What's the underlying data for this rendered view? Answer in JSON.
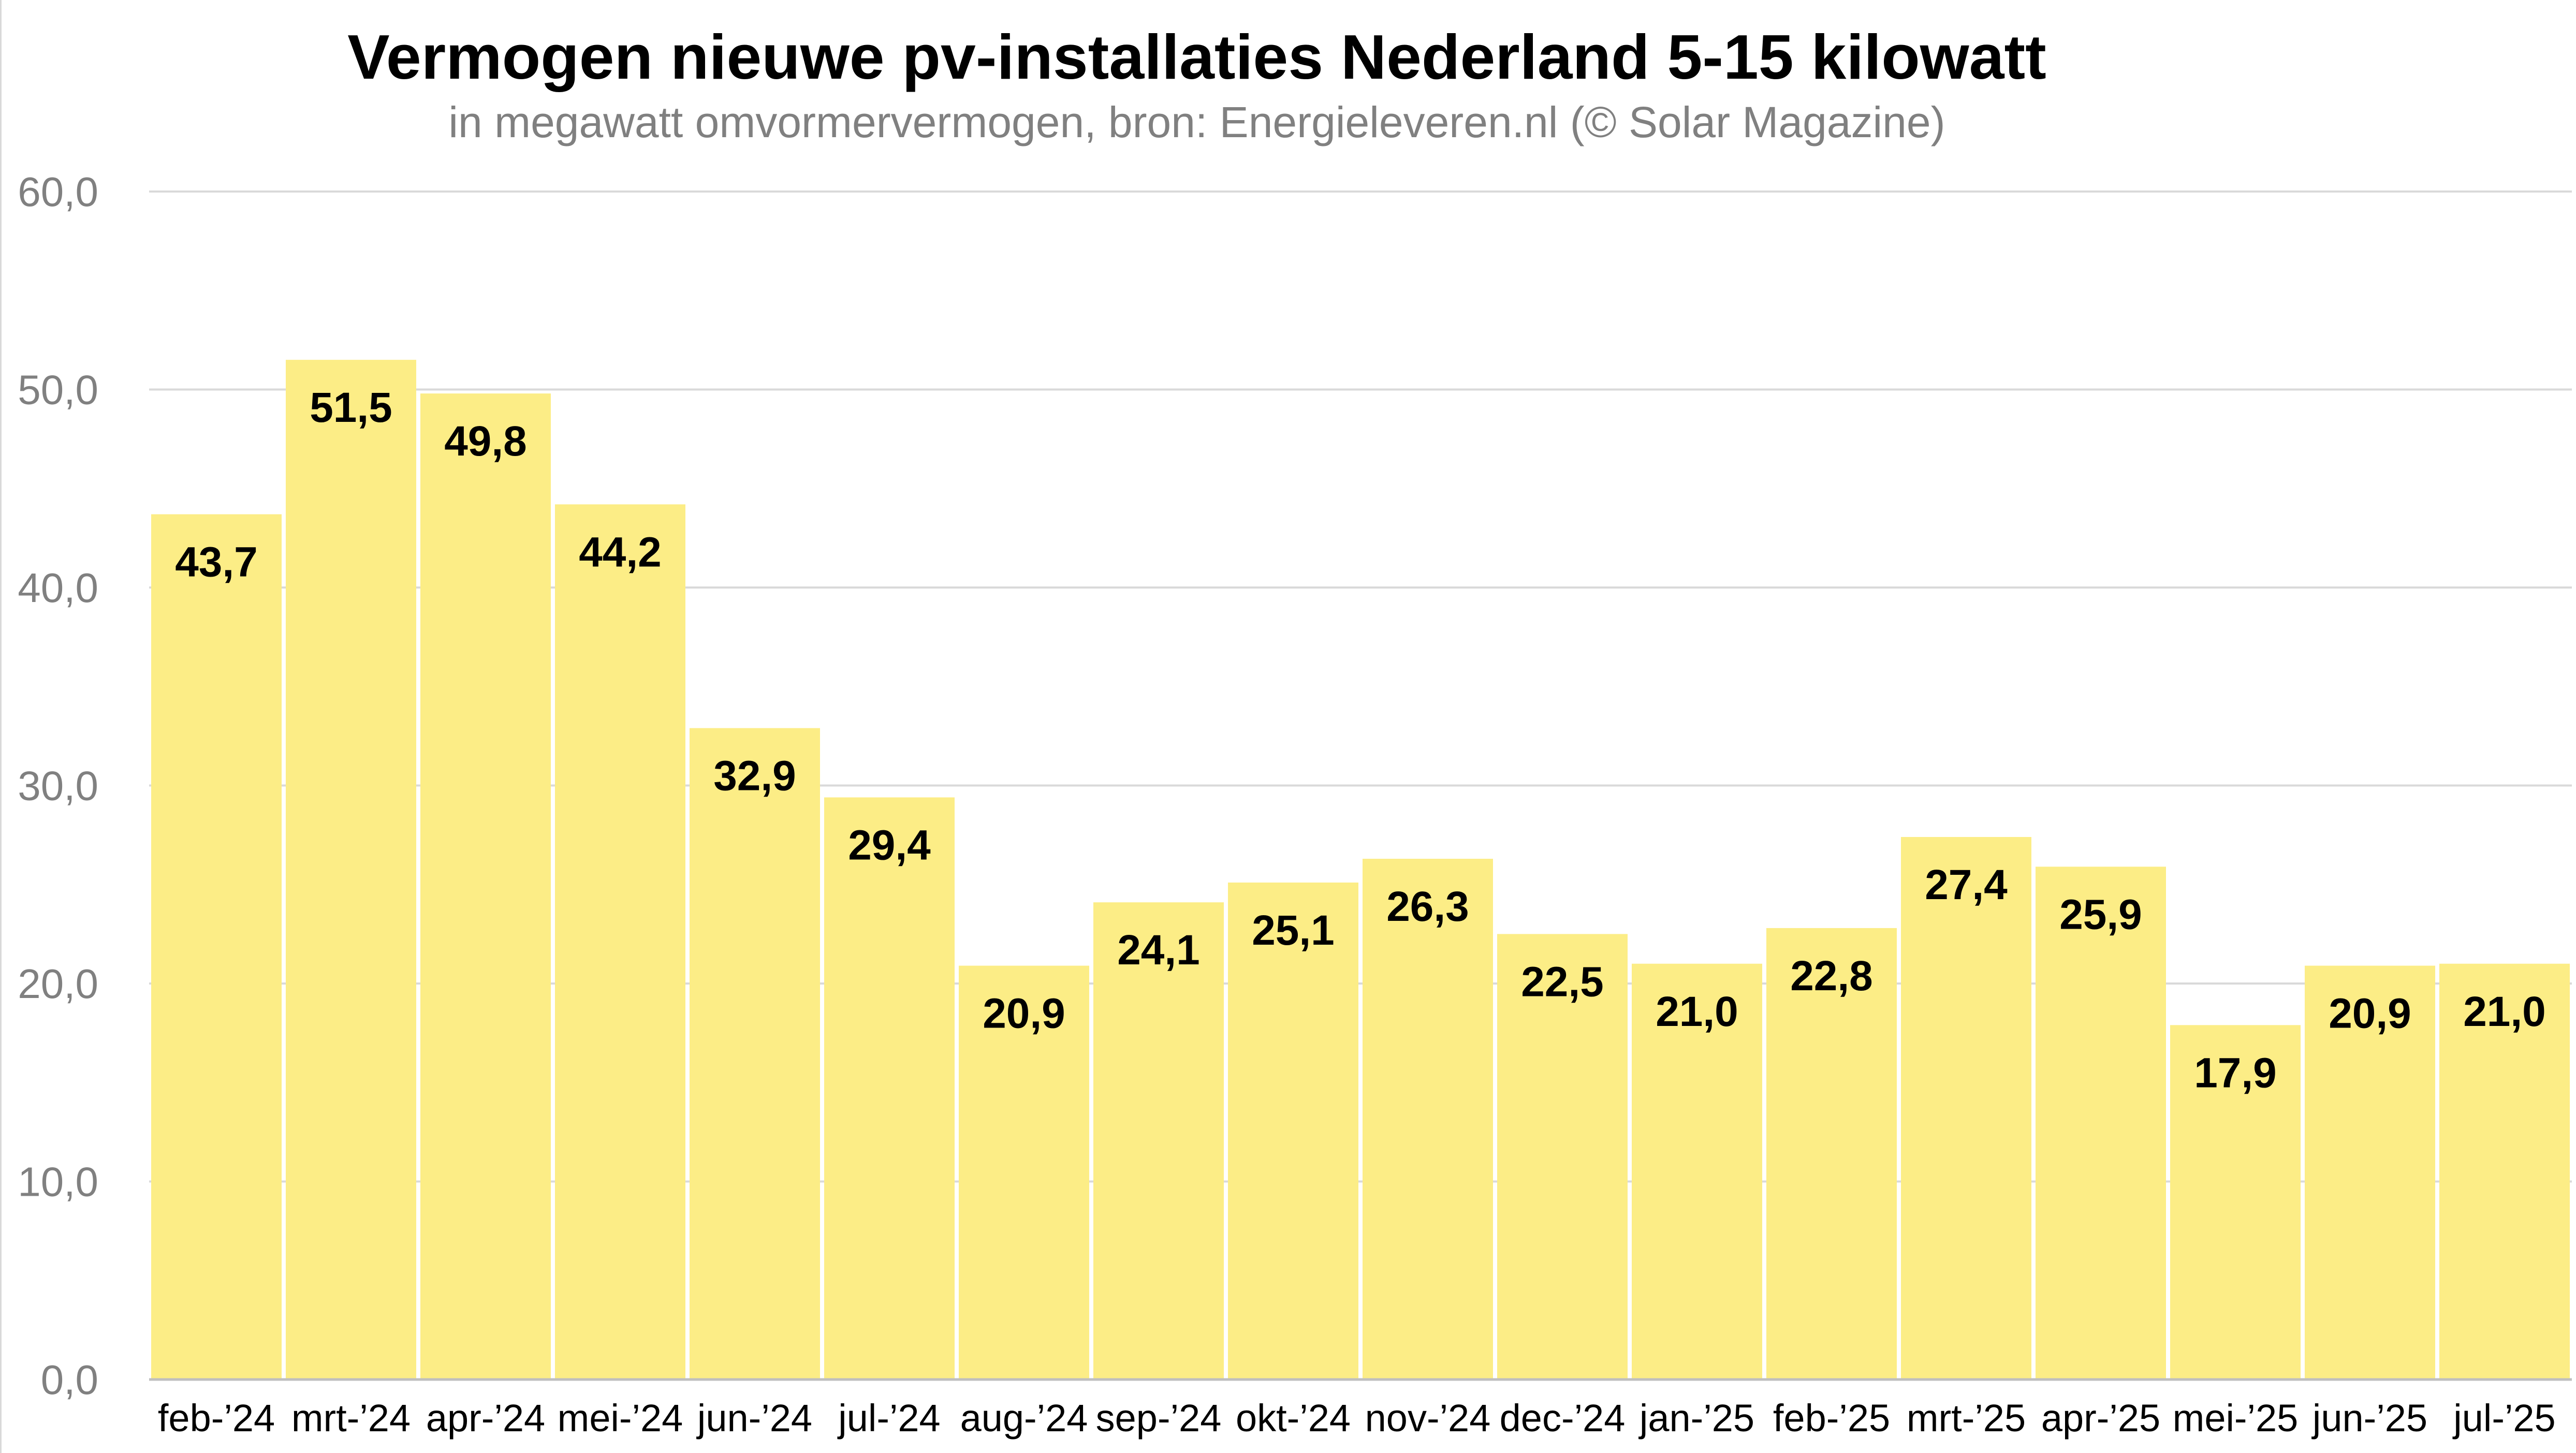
{
  "chart_data": {
    "type": "bar",
    "title": "Vermogen nieuwe pv-installaties Nederland 5-15 kilowatt",
    "subtitle": "in megawatt omvormervermogen, bron: Energieleveren.nl (© Solar Magazine)",
    "xlabel": "",
    "ylabel": "",
    "ylim": [
      0,
      60
    ],
    "yticks": [
      0,
      10,
      20,
      30,
      40,
      50,
      60
    ],
    "ytick_labels": [
      "0,0",
      "10,0",
      "20,0",
      "30,0",
      "40,0",
      "50,0",
      "60,0"
    ],
    "grid": true,
    "legend": "none",
    "categories": [
      "feb-’24",
      "mrt-’24",
      "apr-’24",
      "mei-’24",
      "jun-’24",
      "jul-’24",
      "aug-’24",
      "sep-’24",
      "okt-’24",
      "nov-’24",
      "dec-’24",
      "jan-’25",
      "feb-’25",
      "mrt-’25",
      "apr-’25",
      "mei-’25",
      "jun-’25",
      "jul-’25"
    ],
    "values": [
      43.7,
      51.5,
      49.8,
      44.2,
      32.9,
      29.4,
      20.9,
      24.1,
      25.1,
      26.3,
      22.5,
      21.0,
      22.8,
      27.4,
      25.9,
      17.9,
      20.9,
      21.0
    ],
    "value_labels": [
      "43,7",
      "51,5",
      "49,8",
      "44,2",
      "32,9",
      "29,4",
      "20,9",
      "24,1",
      "25,1",
      "26,3",
      "22,5",
      "21,0",
      "22,8",
      "27,4",
      "25,9",
      "17,9",
      "20,9",
      "21,0"
    ],
    "colors": {
      "bar": "#fced86",
      "grid": "#d9d9d9",
      "axis": "#bfbfbf",
      "tick_text": "#808080",
      "label_text": "#000000"
    }
  }
}
